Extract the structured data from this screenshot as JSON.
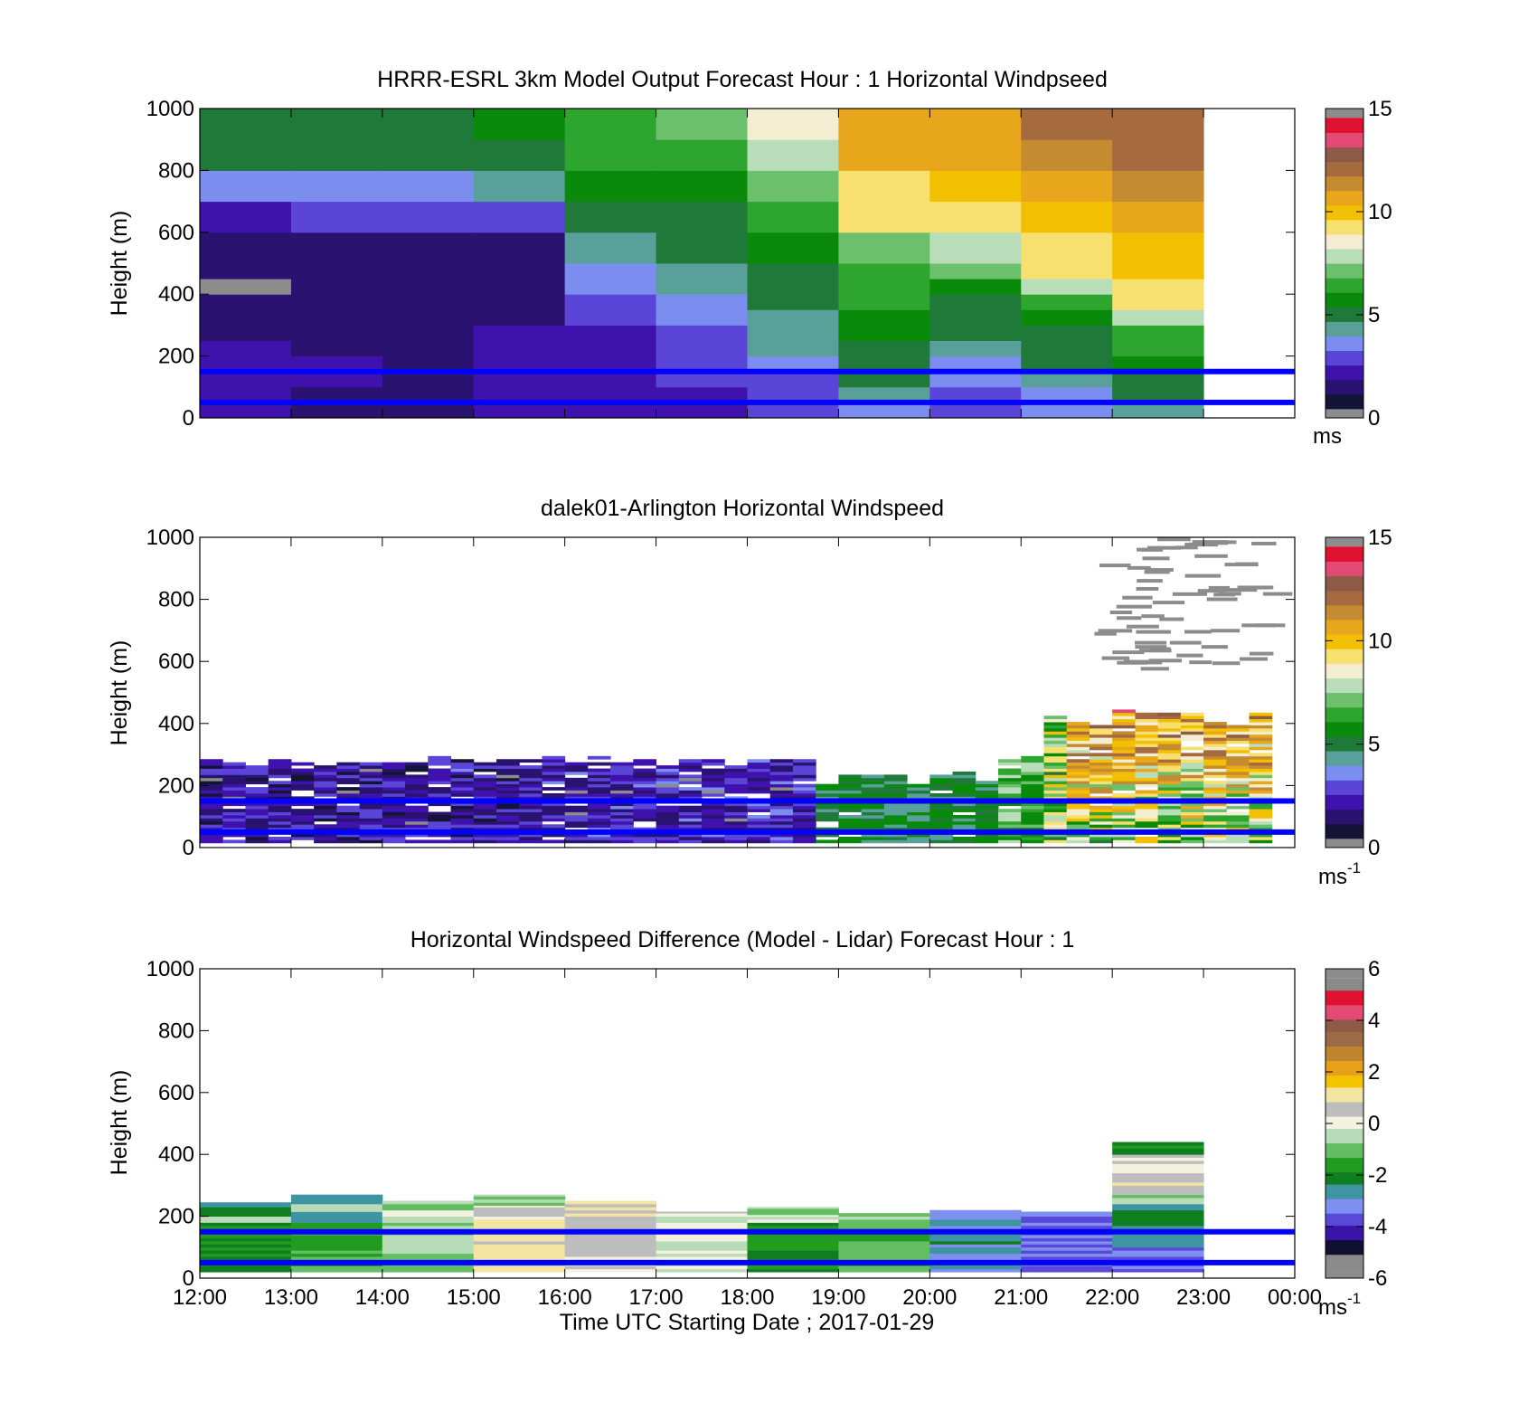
{
  "colors": {
    "windspeed_scale": [
      "#141437",
      "#2a1370",
      "#4012ad",
      "#5a45d8",
      "#7b8ef0",
      "#5aa09a",
      "#1f7a3a",
      "#098a0a",
      "#2ea52e",
      "#6cc06c",
      "#b8ddb8",
      "#f3eed2",
      "#f7e070",
      "#f2c000",
      "#e8a61c",
      "#c58b30",
      "#a56a3e",
      "#8c5a46",
      "#e24a75",
      "#e01030",
      "#8a8a8a"
    ],
    "difference_scale": [
      "#8a8a8a",
      "#101030",
      "#3a14a8",
      "#5a48d8",
      "#7d90ef",
      "#3e94a0",
      "#0f7e1e",
      "#219c21",
      "#63bd63",
      "#b7dcb7",
      "#f4f1e0",
      "#bdbdbd",
      "#f3e4a2",
      "#f3c300",
      "#e6a119",
      "#c0842c",
      "#9c6a45",
      "#8c5a46",
      "#e24a75",
      "#e01030",
      "#8a8a8a"
    ],
    "blue_line": "#0000ff",
    "missing": "#8c8c8c"
  },
  "chart_data": [
    {
      "type": "heatmap",
      "title": "HRRR-ESRL 3km Model Output   Forecast Hour : 1 Horizontal Windpseed",
      "ylabel": "Height (m)",
      "xlabel": "",
      "colorbar_unit": "ms",
      "colorbar_ticks": [
        "0",
        "5",
        "10",
        "15"
      ],
      "clim": [
        0,
        15
      ],
      "ylim": [
        0,
        1000
      ],
      "yticks": [
        "0",
        "200",
        "400",
        "600",
        "800",
        "1000"
      ],
      "xlim": [
        12,
        24
      ],
      "x_start_hours": [
        12,
        13,
        14,
        15,
        16,
        17,
        18,
        19,
        20,
        21,
        22
      ],
      "x_end_hour": 23,
      "height_edges": [
        0,
        20,
        50,
        100,
        150,
        200,
        250,
        300,
        350,
        400,
        450,
        500,
        600,
        700,
        800,
        900,
        1000
      ],
      "values": [
        [
          1.5,
          1.3,
          1.2,
          1.5,
          1.8,
          2.0,
          2.5,
          3.5,
          2.8,
          3.5,
          4.0
        ],
        [
          1.5,
          1.3,
          1.2,
          1.5,
          1.8,
          2.0,
          2.5,
          3.4,
          2.6,
          3.4,
          4.4
        ],
        [
          1.6,
          1.4,
          1.3,
          1.6,
          1.9,
          2.2,
          2.6,
          3.8,
          2.5,
          3.4,
          4.8
        ],
        [
          1.7,
          1.5,
          1.4,
          1.7,
          2.0,
          2.3,
          2.8,
          4.6,
          3.0,
          4.4,
          5.0
        ],
        [
          1.6,
          1.5,
          1.4,
          1.7,
          2.2,
          2.4,
          3.2,
          5.0,
          3.6,
          4.8,
          5.8
        ],
        [
          1.6,
          1.4,
          1.4,
          1.6,
          2.2,
          2.6,
          3.8,
          5.0,
          4.0,
          5.2,
          6.2
        ],
        [
          1.4,
          1.3,
          1.2,
          1.5,
          2.2,
          2.6,
          4.2,
          5.4,
          4.8,
          5.2,
          6.6
        ],
        [
          1.2,
          1.2,
          1.1,
          1.3,
          2.4,
          3.0,
          4.0,
          5.6,
          5.0,
          5.8,
          7.6
        ],
        [
          1.1,
          1.2,
          1.1,
          1.2,
          2.8,
          3.6,
          4.6,
          6.0,
          5.2,
          6.2,
          9.0
        ],
        [
          20,
          1.2,
          1.1,
          1.2,
          3.0,
          3.8,
          5.0,
          6.2,
          5.8,
          7.6,
          9.4
        ],
        [
          1.0,
          1.3,
          1.2,
          1.3,
          3.6,
          4.2,
          5.0,
          6.6,
          6.8,
          9.0,
          10.0
        ],
        [
          1.2,
          1.4,
          1.4,
          1.4,
          4.2,
          4.8,
          5.4,
          7.2,
          7.8,
          9.6,
          10.4
        ],
        [
          2.0,
          2.6,
          2.6,
          2.8,
          5.0,
          5.2,
          6.0,
          9.0,
          9.4,
          10.4,
          11.0
        ],
        [
          3.2,
          3.6,
          3.6,
          4.0,
          5.4,
          5.8,
          7.4,
          9.6,
          9.8,
          11.0,
          11.4
        ],
        [
          5.0,
          5.0,
          5.0,
          4.8,
          6.2,
          6.6,
          7.8,
          10.6,
          10.8,
          11.8,
          12.2
        ],
        [
          5.1,
          5.2,
          5.2,
          5.4,
          6.6,
          7.2,
          8.6,
          11.0,
          11.2,
          12.0,
          12.4
        ]
      ],
      "reference_lines_m": [
        150,
        50
      ]
    },
    {
      "type": "heatmap",
      "title": "dalek01-Arlington  Horizontal Windspeed",
      "ylabel": "Height (m)",
      "xlabel": "",
      "colorbar_unit": "ms",
      "colorbar_unit_exp": "-1",
      "colorbar_ticks": [
        "0",
        "5",
        "10",
        "15"
      ],
      "clim": [
        0,
        15
      ],
      "ylim": [
        0,
        1000
      ],
      "yticks": [
        "0",
        "200",
        "400",
        "600",
        "800",
        "1000"
      ],
      "xlim": [
        12,
        24
      ],
      "reference_lines_m": [
        150,
        50
      ]
    },
    {
      "type": "heatmap",
      "title": "Horizontal Windspeed Difference (Model - Lidar) Forecast Hour : 1",
      "ylabel": "Height (m)",
      "xlabel": "Time UTC  Starting Date ; 2017-01-29",
      "colorbar_unit": "ms",
      "colorbar_unit_exp": "-1",
      "colorbar_ticks": [
        "-6",
        "-4",
        "-2",
        "0",
        "2",
        "4",
        "6"
      ],
      "clim": [
        -6,
        6
      ],
      "ylim": [
        0,
        1000
      ],
      "yticks": [
        "0",
        "200",
        "400",
        "600",
        "800",
        "1000"
      ],
      "xlim": [
        12,
        24
      ],
      "xticks": [
        "12:00",
        "13:00",
        "14:00",
        "15:00",
        "16:00",
        "17:00",
        "18:00",
        "19:00",
        "20:00",
        "21:00",
        "22:00",
        "23:00",
        "00:00"
      ],
      "x_start_hours": [
        12,
        13,
        14,
        15,
        16,
        17,
        18,
        19,
        20,
        21,
        22
      ],
      "columns": [
        [
          [
            20,
            180,
            -2.2
          ],
          [
            180,
            200,
            -0.4
          ],
          [
            200,
            230,
            -2.0
          ],
          [
            230,
            245,
            -2.6
          ]
        ],
        [
          [
            20,
            180,
            -1.6
          ],
          [
            180,
            215,
            -2.6
          ],
          [
            215,
            240,
            -0.8
          ],
          [
            240,
            270,
            -2.8
          ]
        ],
        [
          [
            20,
            190,
            -0.8
          ],
          [
            190,
            220,
            -0.2
          ],
          [
            220,
            250,
            -0.8
          ]
        ],
        [
          [
            20,
            190,
            1.0
          ],
          [
            190,
            235,
            0.2
          ],
          [
            235,
            270,
            -0.6
          ]
        ],
        [
          [
            20,
            200,
            0.4
          ],
          [
            200,
            250,
            1.2
          ]
        ],
        [
          [
            20,
            200,
            -0.4
          ],
          [
            200,
            215,
            0.4
          ]
        ],
        [
          [
            20,
            180,
            -2.0
          ],
          [
            180,
            205,
            -0.2
          ],
          [
            205,
            230,
            -0.8
          ]
        ],
        [
          [
            20,
            180,
            -1.4
          ],
          [
            180,
            210,
            -0.8
          ]
        ],
        [
          [
            20,
            220,
            -3.0
          ]
        ],
        [
          [
            20,
            215,
            -3.8
          ]
        ],
        [
          [
            20,
            100,
            -3.8
          ],
          [
            100,
            240,
            -2.6
          ],
          [
            240,
            270,
            -0.8
          ],
          [
            270,
            340,
            0.6
          ],
          [
            340,
            400,
            0.3
          ],
          [
            400,
            440,
            -2.0
          ]
        ]
      ],
      "reference_lines_m": [
        150,
        50
      ]
    }
  ]
}
